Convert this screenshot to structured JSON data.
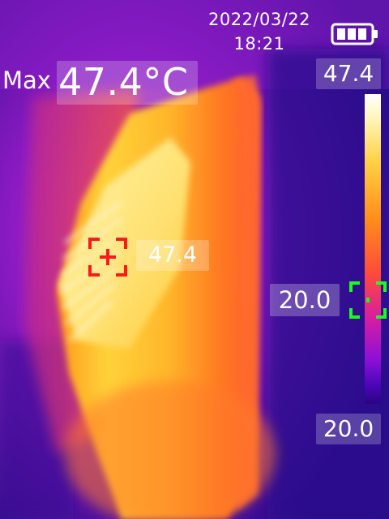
{
  "status_bar": {
    "date": "2022/03/22",
    "time": "18:21",
    "battery_icon": "battery-icon"
  },
  "max_readout": {
    "label": "Max",
    "value": "47.4°C"
  },
  "color_scale": {
    "max": "47.4",
    "min": "20.0"
  },
  "hot_spot": {
    "value": "47.4",
    "marker_color": "#ff1a1a",
    "icon": "hot-spot-crosshair-icon"
  },
  "cold_spot": {
    "value": "20.0",
    "marker_color": "#19ff19",
    "icon": "cold-spot-crosshair-icon"
  }
}
